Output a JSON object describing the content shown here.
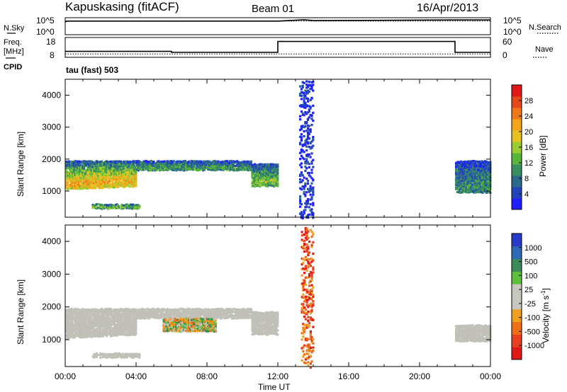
{
  "header": {
    "station": "Kapuskasing (fitACF)",
    "beam": "Beam 01",
    "date": "16/Apr/2013"
  },
  "noise_panel": {
    "left_label": "N.Sky",
    "right_label": "N.Search",
    "left_ticks": [
      "10^5",
      "10^0"
    ],
    "right_ticks": [
      "10^5",
      "10^0"
    ]
  },
  "freq_panel": {
    "left_label_1": "Freq.",
    "left_label_2": "[MHz]",
    "right_label": "Nave",
    "left_ticks": [
      "18",
      "8"
    ],
    "right_ticks": [
      "60",
      "0"
    ],
    "cpid_label": "CPID",
    "mode_label": "tau (fast) 503"
  },
  "colors": {
    "power": [
      "#1f1fff",
      "#2244bb",
      "#2b6a8a",
      "#3a8f5e",
      "#59b43a",
      "#9acd32",
      "#e8c020",
      "#f2a51a",
      "#f07818",
      "#e84818",
      "#e01818"
    ],
    "velocity": [
      "#2a3ac8",
      "#2e6ab8",
      "#3c8a5a",
      "#5cc03a",
      "#c8c8c0",
      "#c8c8c0",
      "#f0a020",
      "#f07018",
      "#e84020",
      "#e01818"
    ],
    "ground_scatter": "#c0c0b8"
  },
  "chart_data": [
    {
      "type": "line",
      "title": "Kapuskasing (fitACF)  Beam 01  16/Apr/2013",
      "panel": "noise",
      "series": [
        {
          "name": "N.Sky",
          "style": "solid",
          "x": [
            0,
            0.1,
            12,
            13,
            13.5,
            14,
            22,
            24
          ],
          "values": [
            10000,
            20000,
            20000,
            40000,
            60000,
            30000,
            50000,
            50000
          ]
        },
        {
          "name": "N.Search",
          "style": "dotted",
          "x": [
            0,
            24
          ],
          "values": [
            20000,
            20000
          ]
        }
      ],
      "xlim": [
        0,
        24
      ],
      "ylim_label": [
        "10^0",
        "10^5"
      ]
    },
    {
      "type": "line",
      "panel": "frequency",
      "series": [
        {
          "name": "Freq",
          "style": "solid",
          "x": [
            0,
            0.1,
            6,
            12,
            22,
            24
          ],
          "values": [
            11,
            11,
            10.5,
            16,
            10.5,
            10.5
          ]
        },
        {
          "name": "Nave",
          "style": "dotted",
          "x": [
            0,
            24
          ],
          "values": [
            10,
            10
          ]
        }
      ],
      "xlim": [
        0,
        24
      ],
      "ylim_left": [
        8,
        18
      ],
      "ylim_right": [
        0,
        60
      ]
    },
    {
      "type": "heatmap",
      "panel": "power",
      "ylabel": "Slant Range [km]",
      "xlim": [
        0,
        24
      ],
      "ylim": [
        180,
        4500
      ],
      "yticks": [
        1000,
        2000,
        3000,
        4000
      ],
      "colorbar_label": "Power [dB]",
      "colorbar_ticks": [
        "4",
        "8",
        "12",
        "16",
        "20",
        "24",
        "28"
      ],
      "bands": [
        {
          "x": [
            0,
            4
          ],
          "y_start": [
            1100,
            1200
          ],
          "y_end": [
            2000,
            2000
          ],
          "level": [
            0.7,
            0.5
          ]
        },
        {
          "x": [
            4,
            10.5
          ],
          "y_start": [
            1700,
            1700
          ],
          "y_end": [
            2000,
            2000
          ],
          "level": [
            0.35,
            0.35
          ]
        },
        {
          "x": [
            10.5,
            12
          ],
          "y_start": [
            1200,
            1200
          ],
          "y_end": [
            1900,
            1900
          ],
          "level": [
            0.45,
            0.45
          ]
        },
        {
          "x": [
            22,
            24
          ],
          "y_start": [
            1000,
            1000
          ],
          "y_end": [
            2000,
            2000
          ],
          "level": [
            0.3,
            0.3
          ]
        },
        {
          "x": [
            1.5,
            4.2
          ],
          "y_start": [
            500,
            500
          ],
          "y_end": [
            650,
            650
          ],
          "level": [
            0.45,
            0.45
          ]
        },
        {
          "x": [
            13.2,
            14
          ],
          "y_start": [
            200,
            200
          ],
          "y_end": [
            4500,
            4500
          ],
          "level": [
            0.05,
            0.05
          ]
        }
      ]
    },
    {
      "type": "heatmap",
      "panel": "velocity",
      "ylabel": "Slant Range [km]",
      "xlabel": "Time UT",
      "xticks": [
        "00:00",
        "04:00",
        "08:00",
        "12:00",
        "16:00",
        "20:00",
        "00:00"
      ],
      "xlim": [
        0,
        24
      ],
      "ylim": [
        180,
        4500
      ],
      "yticks": [
        1000,
        2000,
        3000,
        4000
      ],
      "colorbar_label": "Velocity [m s⁻¹]",
      "colorbar_ticks": [
        "-1000",
        "-500",
        "-100",
        "-25",
        "25",
        "100",
        "500",
        "1000"
      ],
      "bands": [
        {
          "x": [
            0,
            4
          ],
          "y_start": [
            1100,
            1200
          ],
          "y_end": [
            2000,
            2000
          ],
          "kind": "ground"
        },
        {
          "x": [
            4,
            10.5
          ],
          "y_start": [
            1700,
            1700
          ],
          "y_end": [
            2000,
            2000
          ],
          "kind": "ground"
        },
        {
          "x": [
            10.5,
            12
          ],
          "y_start": [
            1200,
            1200
          ],
          "y_end": [
            1900,
            1900
          ],
          "kind": "ground"
        },
        {
          "x": [
            22,
            24
          ],
          "y_start": [
            1000,
            1000
          ],
          "y_end": [
            1500,
            1500
          ],
          "kind": "ground"
        },
        {
          "x": [
            1.5,
            4.2
          ],
          "y_start": [
            500,
            500
          ],
          "y_end": [
            650,
            650
          ],
          "kind": "ground"
        },
        {
          "x": [
            5.5,
            8.5
          ],
          "y_start": [
            1300,
            1300
          ],
          "y_end": [
            1700,
            1700
          ],
          "kind": "mixed"
        },
        {
          "x": [
            13.3,
            14
          ],
          "y_start": [
            200,
            200
          ],
          "y_end": [
            4500,
            4500
          ],
          "kind": "negative"
        }
      ]
    }
  ],
  "axes": {
    "x_label": "Time UT",
    "x_ticks": [
      "00:00",
      "04:00",
      "08:00",
      "12:00",
      "16:00",
      "20:00",
      "00:00"
    ],
    "y_label": "Slant Range [km]",
    "y_ticks": [
      "1000",
      "2000",
      "3000",
      "4000"
    ],
    "power_cb_label": "Power [dB]",
    "power_cb_ticks": [
      "4",
      "8",
      "12",
      "16",
      "20",
      "24",
      "28"
    ],
    "vel_cb_label": "Velocity [m s",
    "vel_cb_sup": "-1",
    "vel_cb_close": "]",
    "vel_cb_ticks": [
      "1000",
      "500",
      "100",
      "25",
      "-25",
      "-100",
      "-500",
      "-1000"
    ]
  }
}
